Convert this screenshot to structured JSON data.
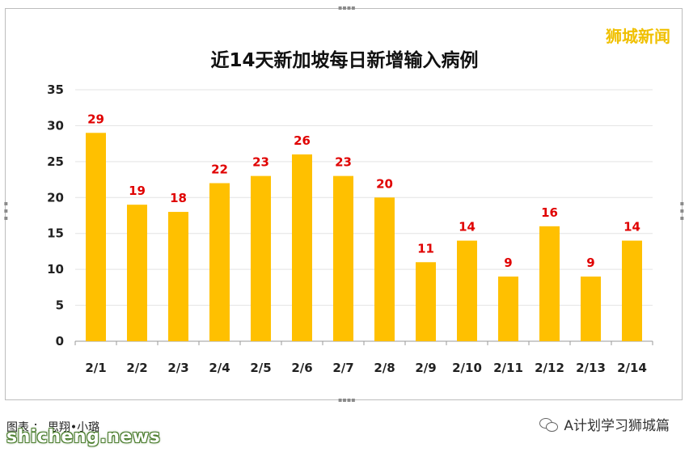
{
  "brand": "狮城新闻",
  "caption": "图表 ： 思翔•小璐",
  "watermark": "shicheng.news",
  "account": "A计划学习狮城篇",
  "chart_data": {
    "type": "bar",
    "title": "近14天新加坡每日新增输入病例",
    "categories": [
      "2/1",
      "2/2",
      "2/3",
      "2/4",
      "2/5",
      "2/6",
      "2/7",
      "2/8",
      "2/9",
      "2/10",
      "2/11",
      "2/12",
      "2/13",
      "2/14"
    ],
    "values": [
      29,
      19,
      18,
      22,
      23,
      26,
      23,
      20,
      11,
      14,
      9,
      16,
      9,
      14
    ],
    "yticks": [
      "0",
      "5",
      "10",
      "15",
      "20",
      "25",
      "30",
      "35"
    ],
    "ylim": [
      0,
      35
    ],
    "data_labels": true,
    "grid": true,
    "bar_color": "#ffc000",
    "label_color": "#e00000"
  }
}
